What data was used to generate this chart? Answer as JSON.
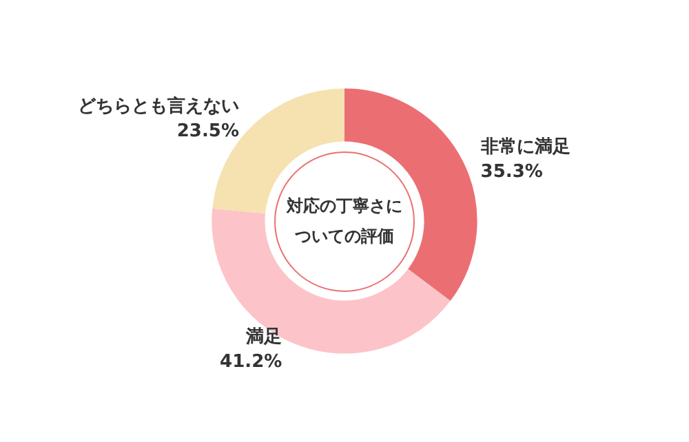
{
  "chart_data": {
    "type": "donut",
    "title": "対応の丁寧さについての評価",
    "categories": [
      "非常に満足",
      "満足",
      "どちらとも言えない"
    ],
    "values": [
      35.3,
      41.2,
      23.5
    ],
    "colors": [
      "#eb6f72",
      "#fcc4c8",
      "#f5e2b0"
    ],
    "value_labels": [
      "35.3%",
      "41.2%",
      "23.5%"
    ],
    "legend": false
  }
}
